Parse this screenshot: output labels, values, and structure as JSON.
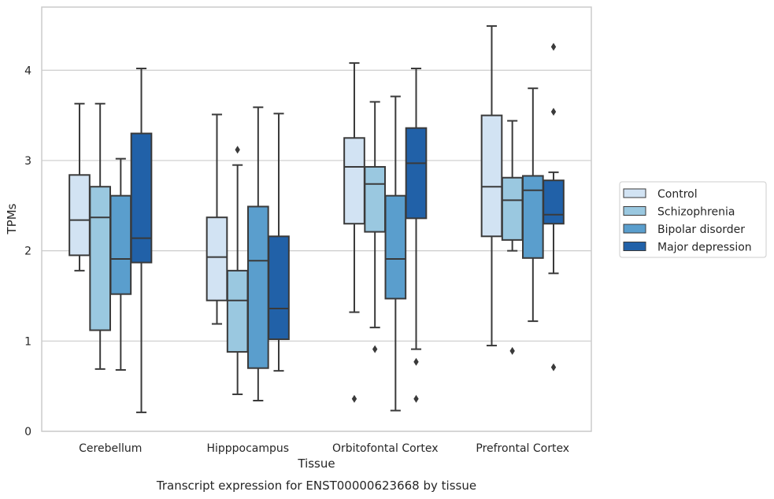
{
  "chart_data": {
    "type": "boxplot",
    "caption": "Transcript expression for ENST00000623668 by tissue",
    "xlabel": "Tissue",
    "ylabel": "TPMs",
    "ylim": [
      0,
      4.7
    ],
    "yticks": [
      0,
      1,
      2,
      3,
      4
    ],
    "grid": "horizontal",
    "legend_position": "right",
    "categories": [
      "Cerebellum",
      "Hipppocampus",
      "Orbitofontal Cortex",
      "Prefrontal Cortex"
    ],
    "series": [
      {
        "name": "Control",
        "color": "#d2e3f3",
        "boxes": [
          {
            "whislo": 1.78,
            "q1": 1.95,
            "med": 2.34,
            "q3": 2.84,
            "whishi": 3.63,
            "fliers": []
          },
          {
            "whislo": 1.19,
            "q1": 1.45,
            "med": 1.93,
            "q3": 2.37,
            "whishi": 3.51,
            "fliers": []
          },
          {
            "whislo": 1.32,
            "q1": 2.3,
            "med": 2.93,
            "q3": 3.25,
            "whishi": 4.08,
            "fliers": [
              0.36
            ]
          },
          {
            "whislo": 0.95,
            "q1": 2.16,
            "med": 2.71,
            "q3": 3.5,
            "whishi": 4.49,
            "fliers": []
          }
        ]
      },
      {
        "name": "Schizophrenia",
        "color": "#9ac8e0",
        "boxes": [
          {
            "whislo": 0.69,
            "q1": 1.12,
            "med": 2.37,
            "q3": 2.71,
            "whishi": 3.63,
            "fliers": []
          },
          {
            "whislo": 0.41,
            "q1": 0.88,
            "med": 1.45,
            "q3": 1.78,
            "whishi": 2.95,
            "fliers": [
              3.12
            ]
          },
          {
            "whislo": 1.15,
            "q1": 2.21,
            "med": 2.74,
            "q3": 2.93,
            "whishi": 3.65,
            "fliers": [
              0.91
            ]
          },
          {
            "whislo": 2.0,
            "q1": 2.12,
            "med": 2.56,
            "q3": 2.81,
            "whishi": 3.44,
            "fliers": [
              0.89
            ]
          }
        ]
      },
      {
        "name": "Bipolar disorder",
        "color": "#5a9ecd",
        "boxes": [
          {
            "whislo": 0.68,
            "q1": 1.52,
            "med": 1.91,
            "q3": 2.61,
            "whishi": 3.02,
            "fliers": []
          },
          {
            "whislo": 0.34,
            "q1": 0.7,
            "med": 1.89,
            "q3": 2.49,
            "whishi": 3.59,
            "fliers": []
          },
          {
            "whislo": 0.23,
            "q1": 1.47,
            "med": 1.91,
            "q3": 2.61,
            "whishi": 3.71,
            "fliers": []
          },
          {
            "whislo": 1.22,
            "q1": 1.92,
            "med": 2.67,
            "q3": 2.83,
            "whishi": 3.8,
            "fliers": []
          }
        ]
      },
      {
        "name": "Major depression",
        "color": "#2161a8",
        "boxes": [
          {
            "whislo": 0.21,
            "q1": 1.87,
            "med": 2.14,
            "q3": 3.3,
            "whishi": 4.02,
            "fliers": []
          },
          {
            "whislo": 0.67,
            "q1": 1.02,
            "med": 1.36,
            "q3": 2.16,
            "whishi": 3.52,
            "fliers": []
          },
          {
            "whislo": 0.91,
            "q1": 2.36,
            "med": 2.97,
            "q3": 3.36,
            "whishi": 4.02,
            "fliers": [
              0.77,
              0.36
            ]
          },
          {
            "whislo": 1.75,
            "q1": 2.3,
            "med": 2.4,
            "q3": 2.78,
            "whishi": 2.87,
            "fliers": [
              4.26,
              3.54,
              0.71
            ]
          }
        ]
      }
    ]
  }
}
